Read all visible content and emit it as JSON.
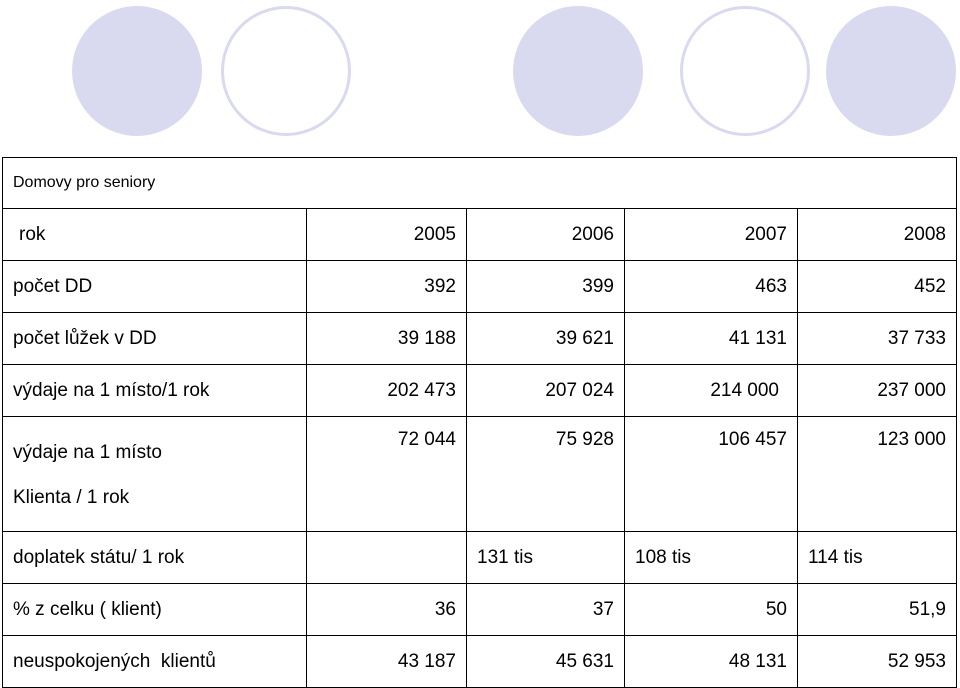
{
  "table": {
    "title": "Domovy pro seniory",
    "rows": [
      {
        "label": "rok",
        "values": [
          "2005",
          "2006",
          "2007",
          "2008"
        ]
      },
      {
        "label": "počet DD",
        "values": [
          "392",
          "399",
          "463",
          "452"
        ]
      },
      {
        "label": "počet lůžek v DD",
        "values": [
          "39 188",
          "39 621",
          "41 131",
          "37 733"
        ]
      },
      {
        "label": "výdaje na 1 místo/1 rok",
        "values": [
          "202 473",
          "207 024",
          "214 000",
          "237 000"
        ]
      },
      {
        "label_line1": "výdaje na 1 místo",
        "label_line2": "Klienta / 1 rok",
        "values": [
          "72 044",
          "75 928",
          "106 457",
          "123 000"
        ]
      },
      {
        "label": "doplatek státu/ 1 rok",
        "values": [
          "",
          "131 tis",
          "108 tis",
          "114 tis"
        ]
      },
      {
        "label": "% z celku ( klient)",
        "values": [
          "36",
          "37",
          "50",
          "51,9"
        ]
      },
      {
        "label": "neuspokojených  klientů",
        "values": [
          "43 187",
          "45 631",
          "48 131",
          "52 953"
        ]
      }
    ]
  },
  "decor": {
    "circle_color": "#d9d9f0"
  }
}
